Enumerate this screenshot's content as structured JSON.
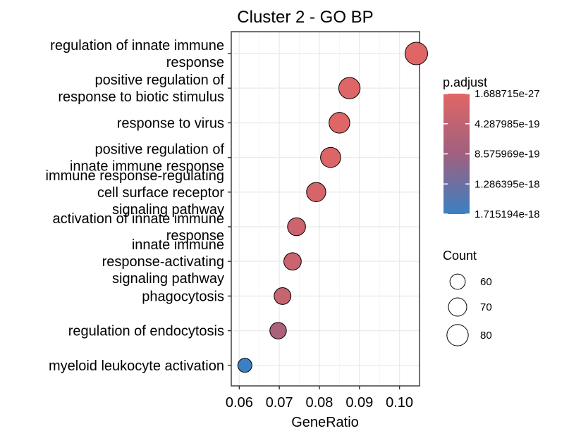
{
  "chart_data": {
    "type": "scatter",
    "title": "Cluster 2 - GO BP",
    "xlabel": "GeneRatio",
    "ylabel": "",
    "xlim": [
      0.058,
      0.105
    ],
    "xticks": [
      "0.06",
      "0.07",
      "0.08",
      "0.09",
      "0.10"
    ],
    "xtick_values": [
      0.06,
      0.07,
      0.08,
      0.09,
      0.1
    ],
    "grid": true,
    "categories": [
      [
        "regulation of innate immune",
        "response"
      ],
      [
        "positive regulation of",
        "response to biotic stimulus"
      ],
      [
        "response to virus"
      ],
      [
        "positive regulation of",
        "innate immune response"
      ],
      [
        "immune response-regulating",
        "cell surface receptor",
        "signaling pathway"
      ],
      [
        "activation of innate immune",
        "response"
      ],
      [
        "innate immune",
        "response-activating",
        "signaling pathway"
      ],
      [
        "phagocytosis"
      ],
      [
        "regulation of endocytosis"
      ],
      [
        "myeloid leukocyte activation"
      ]
    ],
    "points": [
      {
        "x": 0.1042,
        "count": 84,
        "p_adjust": 1.7e-27
      },
      {
        "x": 0.0875,
        "count": 80,
        "p_adjust": 1e-20
      },
      {
        "x": 0.085,
        "count": 78,
        "p_adjust": 2e-20
      },
      {
        "x": 0.0828,
        "count": 76,
        "p_adjust": 5e-20
      },
      {
        "x": 0.0792,
        "count": 73,
        "p_adjust": 1.5e-19
      },
      {
        "x": 0.0743,
        "count": 69,
        "p_adjust": 2.5e-19
      },
      {
        "x": 0.0733,
        "count": 67,
        "p_adjust": 3e-19
      },
      {
        "x": 0.0708,
        "count": 65,
        "p_adjust": 3.5e-19
      },
      {
        "x": 0.0697,
        "count": 64,
        "p_adjust": 7e-19
      },
      {
        "x": 0.0614,
        "count": 56,
        "p_adjust": 1.715194e-18
      }
    ],
    "legend": {
      "color_title": "p.adjust",
      "color_labels": [
        "1.688715e-27",
        "4.287985e-19",
        "8.575969e-19",
        "1.286395e-18",
        "1.715194e-18"
      ],
      "color_values": [
        1.688715e-27,
        4.287985e-19,
        8.575969e-19,
        1.286395e-18,
        1.715194e-18
      ],
      "color_low": "#e06666",
      "color_mid": "#a0607f",
      "color_high": "#3a80c2",
      "size_title": "Count",
      "size_labels": [
        "60",
        "70",
        "80"
      ],
      "size_values": [
        60,
        70,
        80
      ]
    }
  }
}
